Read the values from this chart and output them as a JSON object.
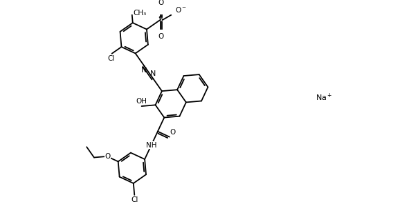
{
  "figsize": [
    5.78,
    3.12
  ],
  "dpi": 100,
  "bg_color": "#ffffff",
  "lc": "black",
  "lw": 1.3,
  "xlim": [
    0,
    10.5
  ],
  "ylim": [
    0,
    6.5
  ]
}
